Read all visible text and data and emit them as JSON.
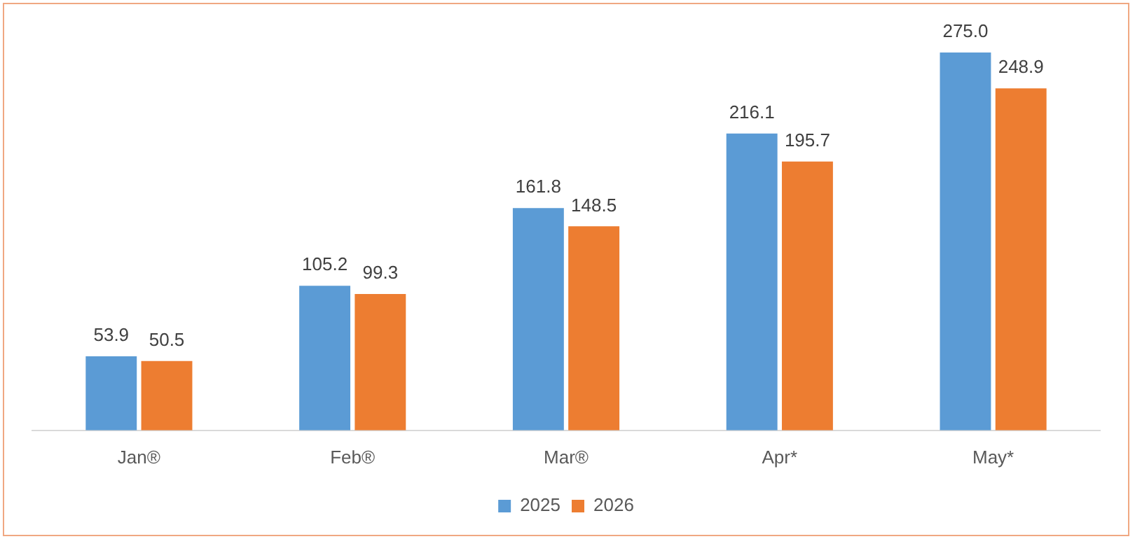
{
  "chart_data": {
    "type": "bar",
    "categories": [
      "Jan®",
      "Feb®",
      "Mar®",
      "Apr*",
      "May*"
    ],
    "series": [
      {
        "name": "2025",
        "color": "#5b9bd5",
        "values": [
          53.9,
          105.2,
          161.8,
          216.1,
          275.0
        ],
        "value_labels": [
          "53.9",
          "105.2",
          "161.8",
          "216.1",
          "275.0"
        ]
      },
      {
        "name": "2026",
        "color": "#ed7d31",
        "values": [
          50.5,
          99.3,
          148.5,
          195.7,
          248.9
        ],
        "value_labels": [
          "50.5",
          "99.3",
          "148.5",
          "195.7",
          "248.9"
        ]
      }
    ],
    "legend": "bottom",
    "grid": false
  }
}
